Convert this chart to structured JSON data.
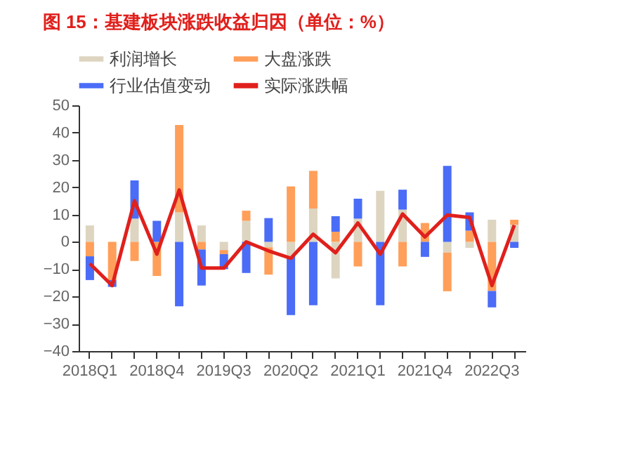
{
  "chart_data": {
    "type": "bar",
    "title": "图 15：基建板块涨跌收益归因（单位：%）",
    "stacked": true,
    "categories": [
      "2018Q1",
      null,
      null,
      "2018Q4",
      null,
      null,
      "2019Q3",
      null,
      null,
      "2020Q2",
      null,
      null,
      "2021Q1",
      null,
      null,
      "2021Q4",
      null,
      null,
      "2022Q3",
      null
    ],
    "series": [
      {
        "name": "利润增长",
        "color": "#ddd5c0",
        "values": [
          6,
          0,
          8.5,
          0,
          10.8,
          6,
          -3,
          7.7,
          -2,
          -5.3,
          12.2,
          -13.4,
          8.5,
          18.7,
          11.8,
          0,
          -3.9,
          -2.2,
          8.1,
          6.3
        ]
      },
      {
        "name": "大盘涨跌",
        "color": "#ff9f5a",
        "values": [
          -5.3,
          -14,
          -7,
          -12.5,
          32,
          -2.8,
          -1.5,
          3.7,
          -10,
          20.3,
          13.8,
          3.7,
          -9,
          0,
          -9,
          6.9,
          -14.2,
          4.1,
          -18,
          1.8
        ]
      },
      {
        "name": "行业估值变动",
        "color": "#4a6cf7",
        "values": [
          -8.7,
          -2.5,
          14,
          7.7,
          -23.6,
          -13.2,
          -5.5,
          -11.4,
          8.7,
          -21.5,
          -23.2,
          5.7,
          7.3,
          -23.2,
          7.3,
          -5.5,
          27.8,
          6.7,
          -6,
          -2.2
        ]
      },
      {
        "name": "实际涨跌幅",
        "color": "#e0201c",
        "type": "line",
        "values": [
          -8,
          -16,
          15,
          -4.5,
          19,
          -9.6,
          -9.6,
          0,
          -3.3,
          -6,
          2.8,
          -4,
          6.9,
          -4.5,
          10.2,
          1.8,
          9.8,
          8.9,
          -16,
          6.1
        ]
      }
    ],
    "ylim": [
      -40,
      50
    ],
    "yticks": [
      -40,
      -30,
      -20,
      -10,
      0,
      10,
      20,
      30,
      40,
      50
    ],
    "legend": "top",
    "marker": "none",
    "line_style": "solid"
  }
}
